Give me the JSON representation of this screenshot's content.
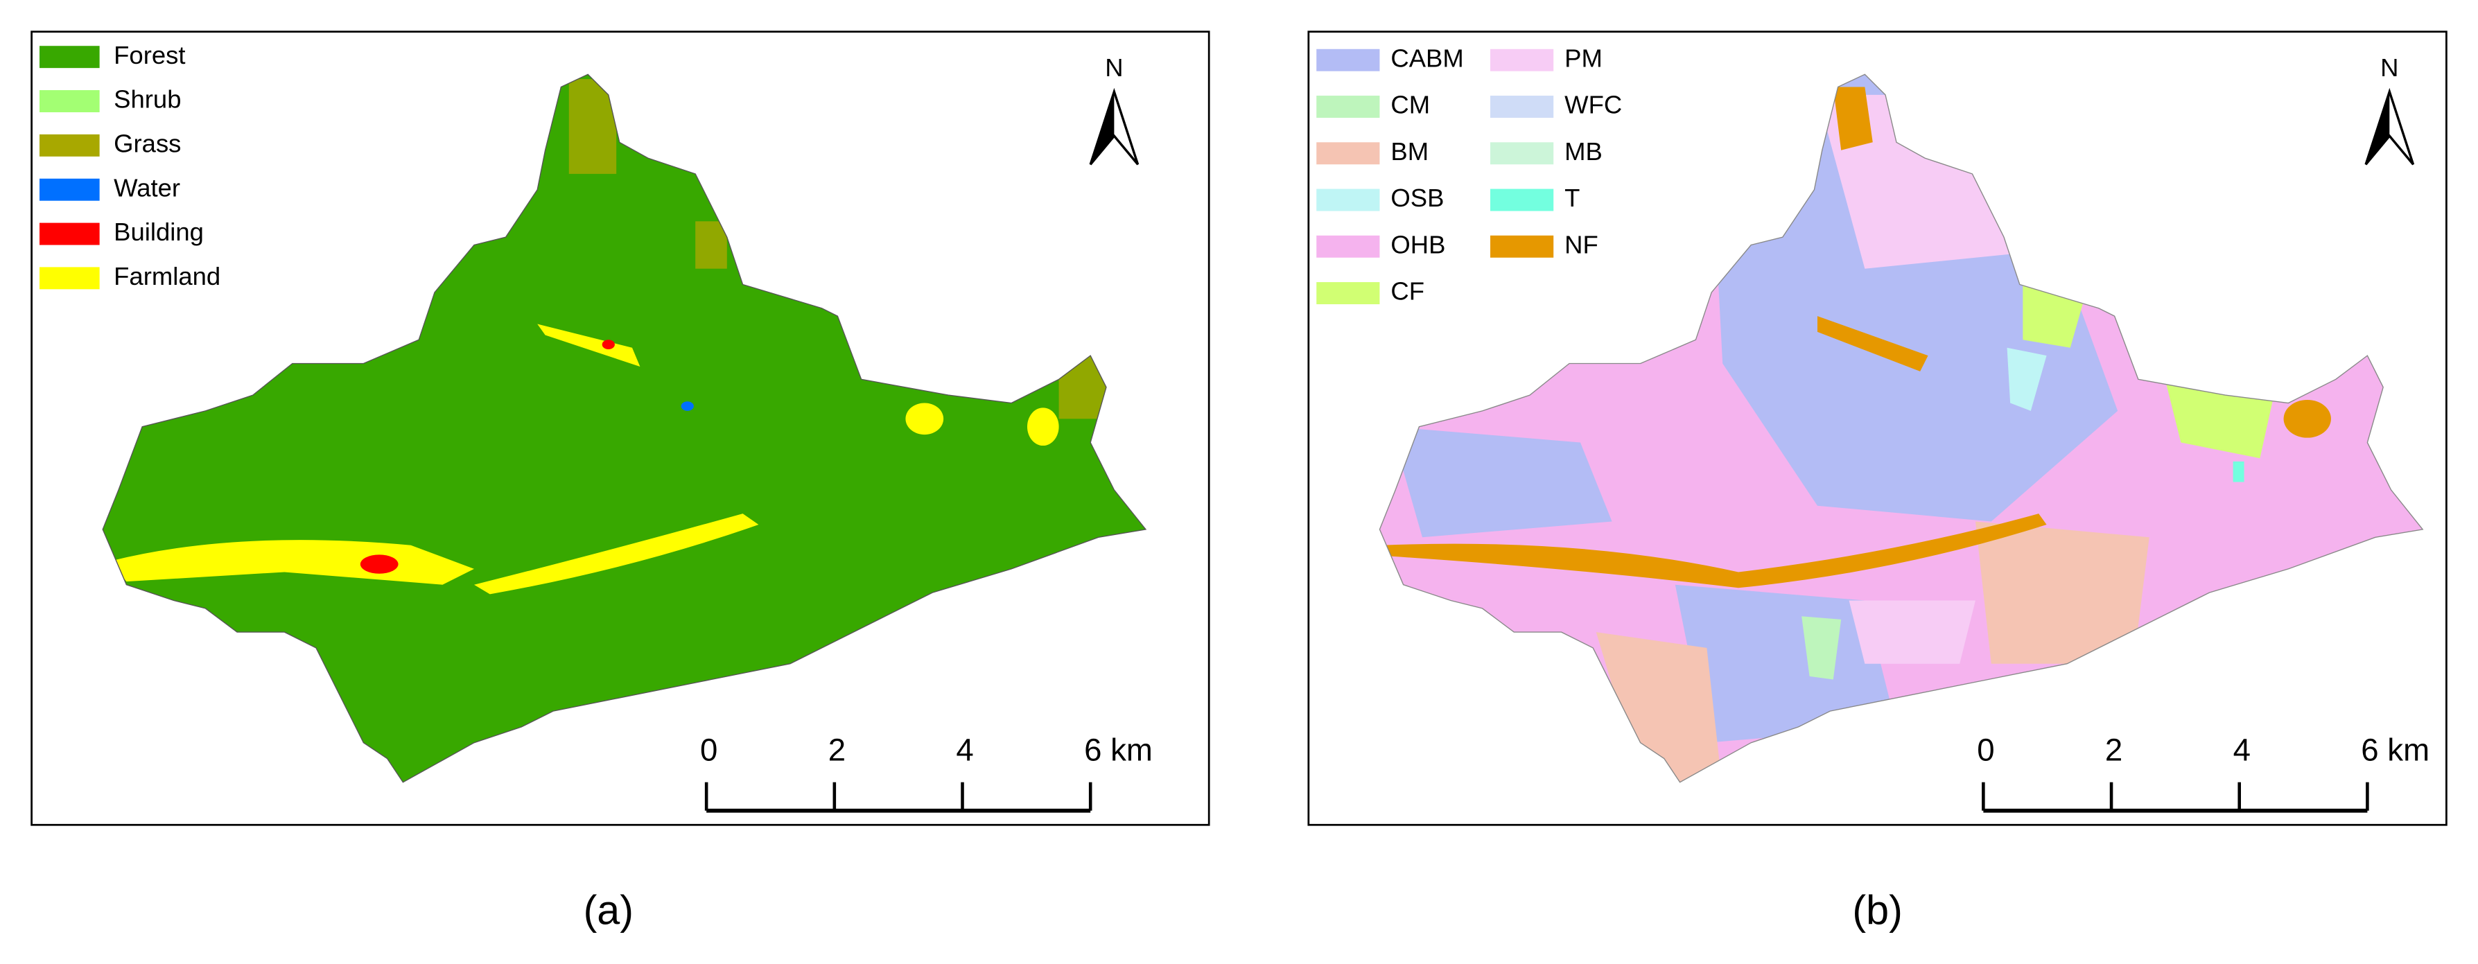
{
  "panels": [
    {
      "caption": "(a)",
      "north": "N",
      "scale_labels": [
        "0",
        "2",
        "4",
        "6 km"
      ],
      "legend": [
        {
          "name": "Forest",
          "color": "#38a800"
        },
        {
          "name": "Shrub",
          "color": "#a3ff73"
        },
        {
          "name": "Grass",
          "color": "#a8a800"
        },
        {
          "name": "Water",
          "color": "#0070ff"
        },
        {
          "name": "Building",
          "color": "#ff0000"
        },
        {
          "name": "Farmland",
          "color": "#ffff00"
        }
      ]
    },
    {
      "caption": "(b)",
      "north": "N",
      "scale_labels": [
        "0",
        "2",
        "4",
        "6 km"
      ],
      "legend": [
        {
          "name": "CABM",
          "color": "#b3bcf5"
        },
        {
          "name": "CM",
          "color": "#bef5bc"
        },
        {
          "name": "BM",
          "color": "#f5c4b3"
        },
        {
          "name": "OSB",
          "color": "#bff5f5"
        },
        {
          "name": "OHB",
          "color": "#f5b3ee"
        },
        {
          "name": "CF",
          "color": "#d1ff73"
        },
        {
          "name": "PM",
          "color": "#f7ccf5"
        },
        {
          "name": "WFC",
          "color": "#cfdcf7"
        },
        {
          "name": "MB",
          "color": "#ccf5d9"
        },
        {
          "name": "T",
          "color": "#73ffdf"
        },
        {
          "name": "NF",
          "color": "#e69800"
        }
      ]
    }
  ]
}
